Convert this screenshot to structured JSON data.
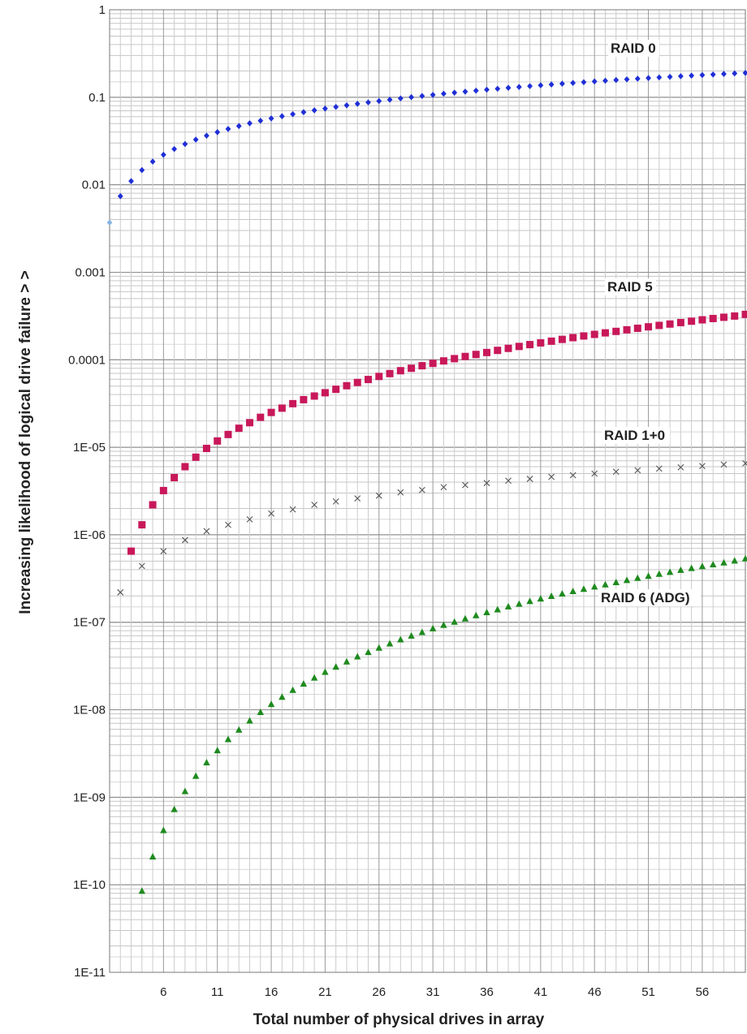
{
  "chart_data": {
    "type": "scatter",
    "title": "",
    "xlabel": "Total number of physical drives in array",
    "ylabel": "Increasing likelihood of logical drive failure  >  >",
    "yscale": "log",
    "ylim": [
      1e-11,
      1
    ],
    "xlim": [
      1,
      60
    ],
    "grid": true,
    "legend": "inline labels",
    "x_ticks": [
      6,
      11,
      16,
      21,
      26,
      31,
      36,
      41,
      46,
      51,
      56
    ],
    "x_tick_labels": [
      "6",
      "11",
      "16",
      "21",
      "26",
      "31",
      "36",
      "41",
      "46",
      "51",
      "56"
    ],
    "y_ticks": [
      1,
      0.1,
      0.01,
      0.001,
      0.0001,
      1e-05,
      1e-06,
      1e-07,
      1e-08,
      1e-09,
      1e-10,
      1e-11
    ],
    "y_tick_labels": [
      "1",
      "0.1",
      "0.01",
      "0.001",
      "0.0001",
      "1E-05",
      "1E-06",
      "1E-07",
      "1E-08",
      "1E-09",
      "1E-10",
      "1E-11"
    ],
    "series": [
      {
        "name": "RAID 0",
        "marker": "diamond",
        "color": "#1f2fd6",
        "first_point_color": "#8ab4e6",
        "x": [
          1,
          2,
          3,
          4,
          5,
          6,
          7,
          8,
          9,
          10,
          11,
          12,
          13,
          14,
          15,
          16,
          17,
          18,
          19,
          20,
          21,
          22,
          23,
          24,
          25,
          26,
          27,
          28,
          29,
          30,
          31,
          32,
          33,
          34,
          35,
          36,
          37,
          38,
          39,
          40,
          41,
          42,
          43,
          44,
          45,
          46,
          47,
          48,
          49,
          50,
          51,
          52,
          53,
          54,
          55,
          56,
          57,
          58,
          59,
          60
        ],
        "y": [
          0.0037,
          0.0074,
          0.011,
          0.0147,
          0.0184,
          0.022,
          0.0256,
          0.0292,
          0.0328,
          0.0364,
          0.0399,
          0.0434,
          0.0469,
          0.0504,
          0.0539,
          0.0573,
          0.0607,
          0.0641,
          0.0675,
          0.0709,
          0.0742,
          0.0775,
          0.0808,
          0.0841,
          0.0874,
          0.0906,
          0.0938,
          0.097,
          0.1002,
          0.1034,
          0.1065,
          0.1097,
          0.1128,
          0.1159,
          0.1189,
          0.122,
          0.125,
          0.1281,
          0.1311,
          0.134,
          0.137,
          0.14,
          0.1429,
          0.1458,
          0.1487,
          0.1516,
          0.1544,
          0.1573,
          0.1601,
          0.1629,
          0.1657,
          0.1685,
          0.1712,
          0.1739,
          0.1767,
          0.1794,
          0.182,
          0.1847,
          0.1873,
          0.19
        ]
      },
      {
        "name": "RAID 5",
        "marker": "square",
        "color": "#c8185a",
        "x": [
          3,
          4,
          5,
          6,
          7,
          8,
          9,
          10,
          11,
          12,
          13,
          14,
          15,
          16,
          17,
          18,
          19,
          20,
          21,
          22,
          23,
          24,
          25,
          26,
          27,
          28,
          29,
          30,
          31,
          32,
          33,
          34,
          35,
          36,
          37,
          38,
          39,
          40,
          41,
          42,
          43,
          44,
          45,
          46,
          47,
          48,
          49,
          50,
          51,
          52,
          53,
          54,
          55,
          56,
          57,
          58,
          59,
          60
        ],
        "y": [
          6.5e-07,
          1.3e-06,
          2.2e-06,
          3.2e-06,
          4.5e-06,
          6e-06,
          7.7e-06,
          9.7e-06,
          1.18e-05,
          1.4e-05,
          1.65e-05,
          1.91e-05,
          2.2e-05,
          2.5e-05,
          2.8e-05,
          3.15e-05,
          3.5e-05,
          3.85e-05,
          4.2e-05,
          4.6e-05,
          5.05e-05,
          5.5e-05,
          5.95e-05,
          6.45e-05,
          6.95e-05,
          7.5e-05,
          8e-05,
          8.55e-05,
          9.1e-05,
          9.7e-05,
          0.000103,
          0.000109,
          0.000115,
          0.000121,
          0.000128,
          0.000135,
          0.000142,
          0.000149,
          0.000156,
          0.000163,
          0.000171,
          0.000179,
          0.000187,
          0.000195,
          0.000203,
          0.000211,
          0.00022,
          0.000229,
          0.000238,
          0.000247,
          0.000256,
          0.000266,
          0.000276,
          0.000286,
          0.000296,
          0.000306,
          0.000316,
          0.00033
        ]
      },
      {
        "name": "RAID 1+0",
        "marker": "x",
        "color": "#555555",
        "x": [
          2,
          4,
          6,
          8,
          10,
          12,
          14,
          16,
          18,
          20,
          22,
          24,
          26,
          28,
          30,
          32,
          34,
          36,
          38,
          40,
          42,
          44,
          46,
          48,
          50,
          52,
          54,
          56,
          58,
          60
        ],
        "y": [
          2.2e-07,
          4.4e-07,
          6.5e-07,
          8.7e-07,
          1.1e-06,
          1.3e-06,
          1.5e-06,
          1.75e-06,
          1.95e-06,
          2.2e-06,
          2.4e-06,
          2.6e-06,
          2.8e-06,
          3.05e-06,
          3.25e-06,
          3.5e-06,
          3.7e-06,
          3.9e-06,
          4.15e-06,
          4.35e-06,
          4.6e-06,
          4.8e-06,
          5e-06,
          5.25e-06,
          5.45e-06,
          5.7e-06,
          5.9e-06,
          6.1e-06,
          6.35e-06,
          6.55e-06
        ]
      },
      {
        "name": "RAID 6 (ADG)",
        "marker": "triangle",
        "color": "#1e8a1e",
        "x": [
          4,
          5,
          6,
          7,
          8,
          9,
          10,
          11,
          12,
          13,
          14,
          15,
          16,
          17,
          18,
          19,
          20,
          21,
          22,
          23,
          24,
          25,
          26,
          27,
          28,
          29,
          30,
          31,
          32,
          33,
          34,
          35,
          36,
          37,
          38,
          39,
          40,
          41,
          42,
          43,
          44,
          45,
          46,
          47,
          48,
          49,
          50,
          51,
          52,
          53,
          54,
          55,
          56,
          57,
          58,
          59,
          60
        ],
        "y": [
          8.5e-11,
          2.1e-10,
          4.2e-10,
          7.3e-10,
          1.17e-09,
          1.75e-09,
          2.5e-09,
          3.43e-09,
          4.6e-09,
          5.9e-09,
          7.5e-09,
          9.4e-09,
          1.16e-08,
          1.4e-08,
          1.68e-08,
          1.98e-08,
          2.32e-08,
          2.7e-08,
          3.1e-08,
          3.55e-08,
          4.05e-08,
          4.55e-08,
          5.1e-08,
          5.7e-08,
          6.35e-08,
          7e-08,
          7.7e-08,
          8.5e-08,
          9.3e-08,
          1.01e-07,
          1.1e-07,
          1.2e-07,
          1.3e-07,
          1.4e-07,
          1.51e-07,
          1.62e-07,
          1.74e-07,
          1.86e-07,
          1.99e-07,
          2.12e-07,
          2.26e-07,
          2.4e-07,
          2.55e-07,
          2.7e-07,
          2.86e-07,
          3.03e-07,
          3.2e-07,
          3.38e-07,
          3.56e-07,
          3.75e-07,
          3.95e-07,
          4.15e-07,
          4.36e-07,
          4.58e-07,
          4.8e-07,
          5.05e-07,
          5.35e-07
        ]
      }
    ]
  }
}
